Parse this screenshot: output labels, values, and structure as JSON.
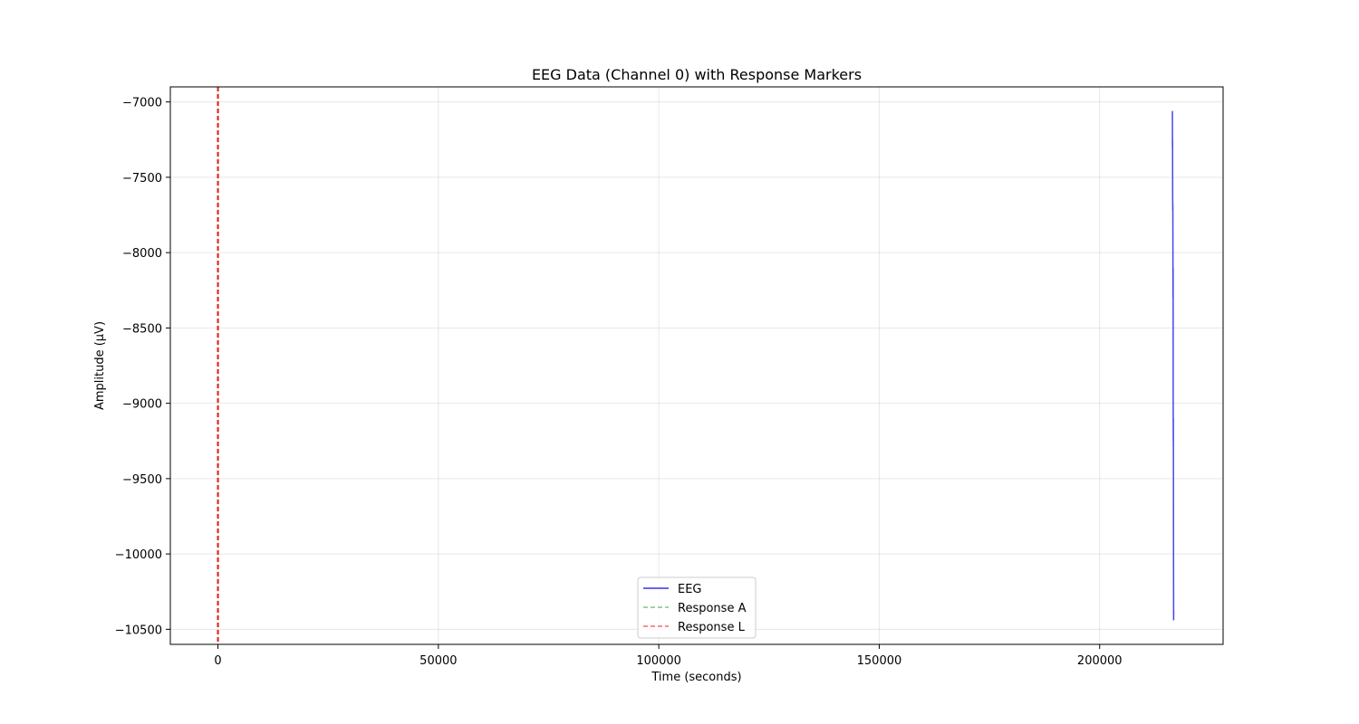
{
  "chart_data": {
    "type": "line",
    "title": "EEG Data (Channel 0) with Response Markers",
    "xlabel": "Time (seconds)",
    "ylabel": "Amplitude (μV)",
    "xlim": [
      -10800,
      228000
    ],
    "ylim": [
      -10600,
      -6900
    ],
    "xticks": [
      0,
      50000,
      100000,
      150000,
      200000
    ],
    "xtick_labels": [
      "0",
      "50000",
      "100000",
      "150000",
      "200000"
    ],
    "yticks": [
      -7000,
      -7500,
      -8000,
      -8500,
      -9000,
      -9500,
      -10000,
      -10500
    ],
    "ytick_labels": [
      "−7000",
      "−7500",
      "−8000",
      "−8500",
      "−9000",
      "−9500",
      "−10000",
      "−10500"
    ],
    "grid": true,
    "legend_position": "lower-center",
    "series": [
      {
        "name": "EEG",
        "kind": "line",
        "color": "#3333ee",
        "points": [
          [
            216500,
            -7060
          ],
          [
            216520,
            -7300
          ],
          [
            216540,
            -7250
          ],
          [
            216560,
            -7600
          ],
          [
            216580,
            -7720
          ],
          [
            216600,
            -7680
          ],
          [
            216620,
            -8000
          ],
          [
            216640,
            -8300
          ],
          [
            216660,
            -8100
          ],
          [
            216680,
            -9000
          ],
          [
            216700,
            -9250
          ],
          [
            216720,
            -9100
          ],
          [
            216740,
            -9600
          ],
          [
            216760,
            -10100
          ],
          [
            216780,
            -10440
          ],
          [
            216800,
            -10380
          ]
        ]
      },
      {
        "name": "Response A",
        "kind": "vline",
        "color": "#2ca02c",
        "dash": true,
        "x": [
          0
        ]
      },
      {
        "name": "Response L",
        "kind": "vline",
        "color": "#ff0000",
        "dash": true,
        "x": [
          0
        ]
      }
    ]
  }
}
